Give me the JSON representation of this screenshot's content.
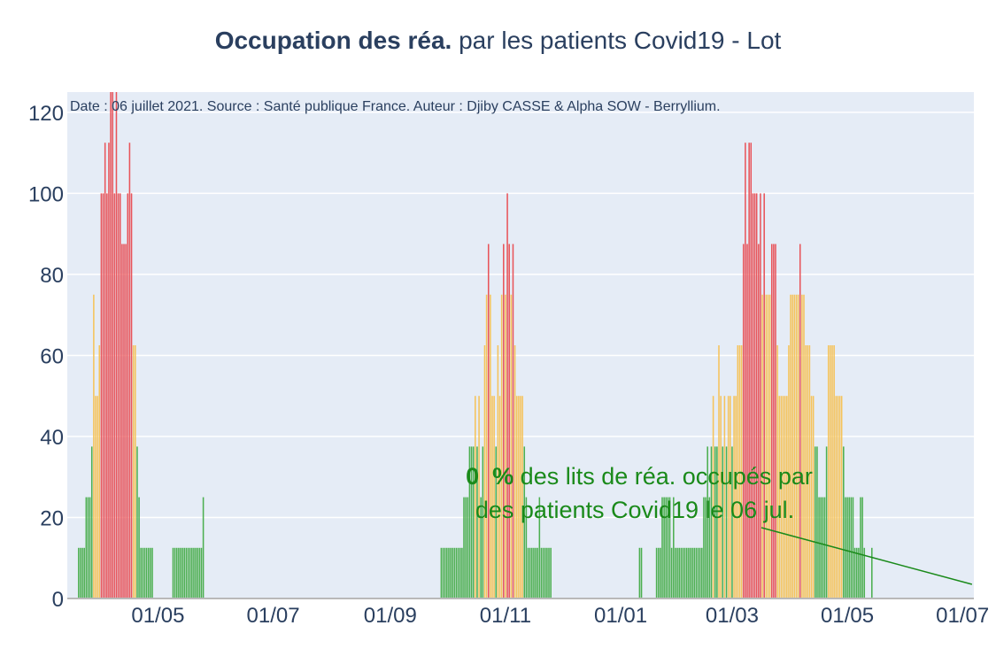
{
  "title": {
    "bold": "Occupation des réa.",
    "rest": " par les patients Covid19 - Lot"
  },
  "source_note": "Date : 06 juillet 2021. Source : Santé publique France. Auteur : Djiby CASSE & Alpha SOW - Berryllium.",
  "annotation": {
    "line1_bold": "0  %",
    "line1_rest": " des lits de réa. occupés par",
    "line2": "des patients Covid19 le 06 jul."
  },
  "colors": {
    "low": "#4caf50",
    "mid": "#f5c35a",
    "high": "#e8545a",
    "annotation": "#1a8a1a",
    "plot_bg": "#e5ecf6",
    "text": "#2a3f5f"
  },
  "chart_data": {
    "type": "bar",
    "x_start": "2020-03-20",
    "x_end": "2021-07-06",
    "xlim": [
      "2020-03-14",
      "2021-07-07"
    ],
    "ylim": [
      0,
      125
    ],
    "yticks": [
      0,
      20,
      40,
      60,
      80,
      100,
      120
    ],
    "xticks": [
      {
        "date": "2020-05-01",
        "label": "01/05"
      },
      {
        "date": "2020-07-01",
        "label": "01/07"
      },
      {
        "date": "2020-09-01",
        "label": "01/09"
      },
      {
        "date": "2020-11-01",
        "label": "01/11"
      },
      {
        "date": "2021-01-01",
        "label": "01/01"
      },
      {
        "date": "2021-03-01",
        "label": "01/03"
      },
      {
        "date": "2021-05-01",
        "label": "01/05"
      },
      {
        "date": "2021-07-01",
        "label": "01/07"
      }
    ],
    "color_thresholds": {
      "low_below": 40,
      "mid_below": 80
    },
    "grid": true,
    "segments": [
      {
        "start": "2020-03-20",
        "values": [
          12.5,
          12.5,
          12.5,
          12.5,
          25,
          25,
          25,
          37.5,
          75,
          50,
          50,
          62.5,
          100,
          100,
          112.5,
          100,
          112.5,
          137.5,
          125,
          100,
          125,
          100,
          100,
          87.5,
          87.5,
          87.5,
          100,
          112.5,
          100,
          62.5,
          62.5,
          37.5,
          25,
          12.5,
          12.5,
          12.5,
          12.5,
          12.5,
          12.5,
          12.5,
          0,
          0,
          0,
          0,
          0,
          0,
          0,
          0,
          0,
          0,
          12.5,
          12.5,
          12.5,
          12.5,
          12.5,
          12.5,
          12.5,
          12.5,
          12.5,
          12.5,
          12.5,
          12.5,
          12.5,
          12.5,
          12.5,
          12.5,
          25
        ]
      },
      {
        "start": "2020-09-28",
        "values": [
          12.5,
          12.5,
          12.5,
          12.5,
          12.5,
          12.5,
          12.5,
          12.5,
          12.5,
          12.5,
          12.5,
          12.5,
          25,
          25,
          25,
          37.5,
          37.5,
          37.5,
          50,
          37.5,
          50,
          25,
          37.5,
          62.5,
          75,
          87.5,
          75,
          50,
          50,
          37.5,
          62.5,
          50,
          75,
          87.5,
          75,
          100,
          87.5,
          75,
          87.5,
          62.5,
          50,
          50,
          50,
          50,
          37.5,
          25,
          12.5,
          12.5,
          12.5,
          12.5,
          12.5,
          12.5,
          25,
          12.5,
          12.5,
          12.5,
          12.5,
          12.5,
          12.5
        ]
      },
      {
        "start": "2021-01-11",
        "values": [
          12.5,
          12.5
        ]
      },
      {
        "start": "2021-01-20",
        "values": [
          12.5,
          12.5,
          12.5,
          25,
          25,
          25,
          25,
          25,
          12.5,
          25,
          12.5,
          12.5,
          12.5,
          12.5,
          12.5,
          12.5,
          12.5,
          12.5,
          12.5,
          12.5,
          12.5,
          12.5,
          12.5,
          12.5,
          12.5,
          25,
          25,
          37.5,
          25,
          37.5,
          50,
          37.5,
          37.5,
          62.5,
          50,
          37.5,
          50,
          37.5,
          50,
          50,
          37.5,
          50,
          50,
          62.5,
          62.5,
          62.5,
          87.5,
          112.5,
          87.5,
          112.5,
          112.5,
          100,
          100,
          100,
          87.5,
          100,
          75,
          100,
          75,
          75,
          75,
          87.5,
          87.5,
          87.5,
          62.5,
          50,
          50,
          50,
          50,
          50,
          62.5,
          75,
          75,
          75,
          75,
          75,
          87.5,
          75,
          75,
          62.5,
          62.5,
          62.5,
          50,
          50,
          37.5,
          37.5,
          25,
          25,
          25,
          25,
          37.5,
          62.5,
          62.5,
          62.5,
          62.5,
          50,
          50,
          50,
          50,
          37.5,
          25,
          25,
          25,
          25,
          25,
          12.5,
          12.5,
          12.5,
          25,
          25,
          12.5,
          0,
          0,
          0,
          12.5
        ]
      }
    ]
  }
}
